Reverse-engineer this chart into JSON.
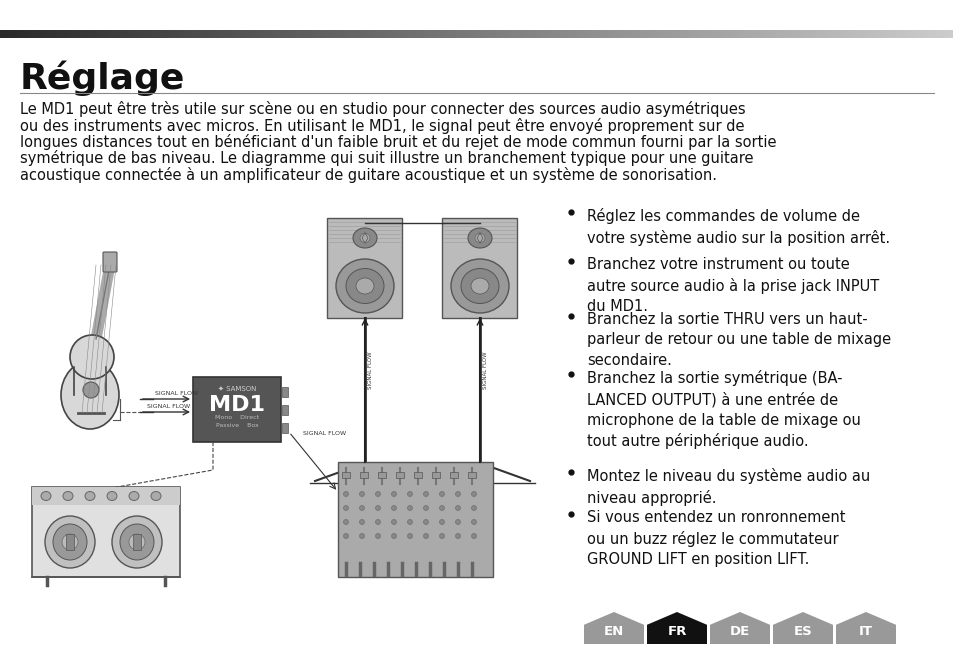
{
  "title": "Réglage",
  "title_fontsize": 26,
  "body_text_lines": [
    "Le MD1 peut être très utile sur scène ou en studio pour connecter des sources audio asymétriques",
    "ou des instruments avec micros. En utilisant le MD1, le signal peut être envoyé proprement sur de",
    "longues distances tout en bénéficiant d'un faible bruit et du rejet de mode commun fourni par la sortie",
    "symétrique de bas niveau. Le diagramme qui suit illustre un branchement typique pour une guitare",
    "acoustique connectée à un amplificateur de guitare acoustique et un système de sonorisation."
  ],
  "body_fontsize": 10.5,
  "bullet_points": [
    "Réglez les commandes de volume de\nvotre système audio sur la position arrêt.",
    "Branchez votre instrument ou toute\nautre source audio à la prise jack INPUT\ndu MD1.",
    "Branchez la sortie THRU vers un haut-\nparleur de retour ou une table de mixage\nsecondaire.",
    "Branchez la sortie symétrique (BA-\nLANCED OUTPUT) à une entrée de\nmicrophone de la table de mixage ou\ntout autre périphérique audio.",
    "Montez le niveau du système audio au\nniveau approprié.",
    "Si vous entendez un ronronnement\nou un buzz réglez le commutateur\nGROUND LIFT en position LIFT."
  ],
  "bullet_fontsize": 10.5,
  "lang_tabs": [
    "EN",
    "FR",
    "DE",
    "ES",
    "IT"
  ],
  "lang_active": "FR",
  "lang_active_color": "#111111",
  "lang_inactive_color": "#999999",
  "lang_text_color": "#ffffff",
  "background_color": "#ffffff",
  "text_color": "#111111"
}
